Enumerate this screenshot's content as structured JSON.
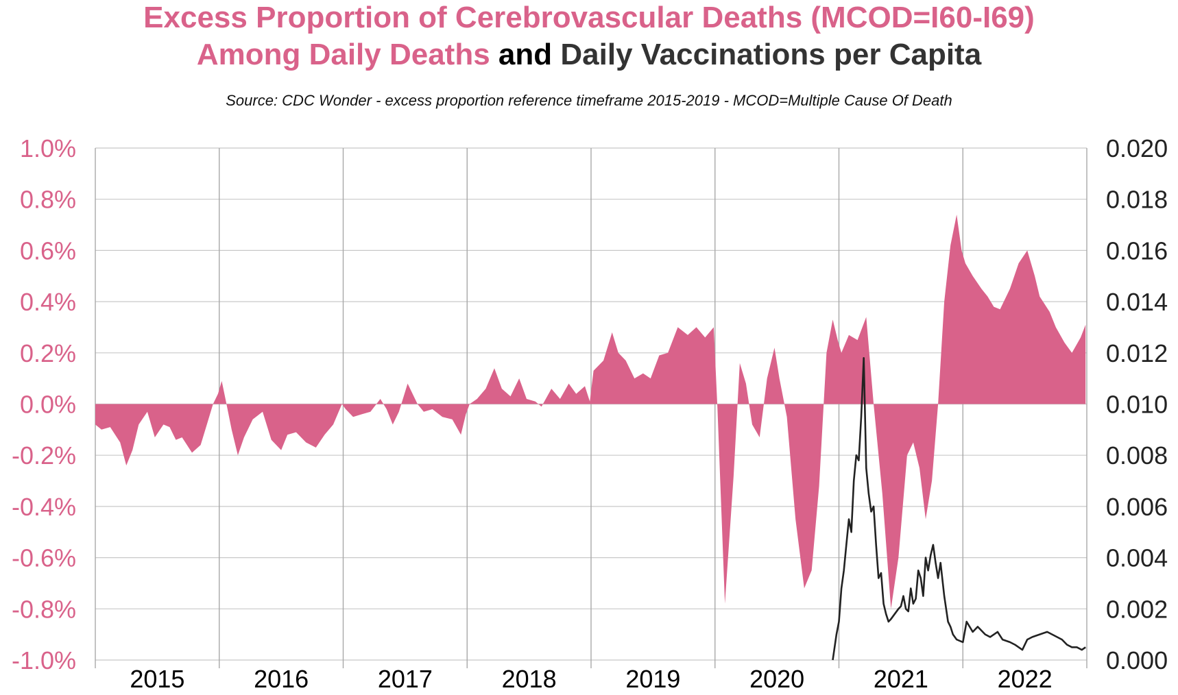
{
  "title": {
    "line1": "Excess Proportion of Cerebrovascular Deaths (MCOD=I60-I69)",
    "line2_a": "Among Daily Deaths",
    "line2_b": " and ",
    "line2_c": "Daily Vaccinations per Capita"
  },
  "subtitle": "Source: CDC Wonder - excess proportion reference timeframe 2015-2019 - MCOD=Multiple Cause Of Death",
  "colors": {
    "excess": "#d9628a",
    "excess_text": "#d9628a",
    "vacc": "#222222",
    "grid": "#c8c8c8",
    "year_sep": "#a8a8a8"
  },
  "chart_data": {
    "type": "area",
    "grid": true,
    "x_categories": [
      "2015",
      "2016",
      "2017",
      "2018",
      "2019",
      "2020",
      "2021",
      "2022"
    ],
    "xlim": [
      2015.0,
      2023.0
    ],
    "left_axis": {
      "ylim": [
        -1.0,
        1.0
      ],
      "ticks": [
        "1.0%",
        "0.8%",
        "0.6%",
        "0.4%",
        "0.2%",
        "0.0%",
        "-0.2%",
        "-0.4%",
        "-0.6%",
        "-0.8%",
        "-1.0%"
      ]
    },
    "right_axis": {
      "ylim": [
        0.0,
        0.02
      ],
      "ticks": [
        "0.020",
        "0.018",
        "0.016",
        "0.014",
        "0.012",
        "0.010",
        "0.008",
        "0.006",
        "0.004",
        "0.002",
        "0.000"
      ]
    },
    "series": [
      {
        "name": "Excess Proportion of Cerebrovascular Deaths (MCOD=I60-I69) Among Daily Deaths",
        "axis": "left",
        "unit": "%",
        "x": [
          2015.0,
          2015.05,
          2015.12,
          2015.2,
          2015.25,
          2015.3,
          2015.35,
          2015.42,
          2015.48,
          2015.55,
          2015.6,
          2015.65,
          2015.7,
          2015.78,
          2015.85,
          2015.9,
          2015.95,
          2015.99,
          2016.02,
          2016.05,
          2016.1,
          2016.15,
          2016.2,
          2016.27,
          2016.35,
          2016.42,
          2016.5,
          2016.55,
          2016.62,
          2016.7,
          2016.78,
          2016.85,
          2016.92,
          2016.99,
          2017.02,
          2017.08,
          2017.15,
          2017.22,
          2017.3,
          2017.35,
          2017.4,
          2017.45,
          2017.52,
          2017.6,
          2017.65,
          2017.72,
          2017.8,
          2017.88,
          2017.95,
          2017.99,
          2018.02,
          2018.08,
          2018.15,
          2018.22,
          2018.28,
          2018.35,
          2018.42,
          2018.48,
          2018.55,
          2018.6,
          2018.68,
          2018.75,
          2018.82,
          2018.88,
          2018.95,
          2018.99,
          2019.02,
          2019.1,
          2019.17,
          2019.22,
          2019.28,
          2019.35,
          2019.42,
          2019.48,
          2019.55,
          2019.62,
          2019.7,
          2019.78,
          2019.85,
          2019.92,
          2019.99,
          2020.02,
          2020.08,
          2020.15,
          2020.2,
          2020.25,
          2020.3,
          2020.36,
          2020.42,
          2020.48,
          2020.52,
          2020.58,
          2020.65,
          2020.72,
          2020.78,
          2020.84,
          2020.9,
          2020.95,
          2020.99,
          2021.02,
          2021.08,
          2021.15,
          2021.22,
          2021.28,
          2021.35,
          2021.42,
          2021.48,
          2021.55,
          2021.6,
          2021.65,
          2021.7,
          2021.75,
          2021.8,
          2021.85,
          2021.9,
          2021.95,
          2021.99,
          2022.02,
          2022.08,
          2022.15,
          2022.2,
          2022.25,
          2022.3,
          2022.38,
          2022.45,
          2022.52,
          2022.58,
          2022.62,
          2022.7,
          2022.75,
          2022.82,
          2022.88,
          2022.95,
          2022.99
        ],
        "values": [
          -0.08,
          -0.1,
          -0.09,
          -0.15,
          -0.24,
          -0.18,
          -0.08,
          -0.03,
          -0.13,
          -0.08,
          -0.09,
          -0.14,
          -0.13,
          -0.19,
          -0.16,
          -0.08,
          0.0,
          0.04,
          0.09,
          0.02,
          -0.1,
          -0.2,
          -0.13,
          -0.06,
          -0.03,
          -0.14,
          -0.18,
          -0.12,
          -0.11,
          -0.15,
          -0.17,
          -0.12,
          -0.08,
          0.0,
          -0.02,
          -0.05,
          -0.04,
          -0.03,
          0.02,
          -0.02,
          -0.08,
          -0.03,
          0.08,
          0.0,
          -0.03,
          -0.02,
          -0.05,
          -0.06,
          -0.12,
          -0.04,
          0.0,
          0.02,
          0.06,
          0.14,
          0.06,
          0.03,
          0.1,
          0.02,
          0.01,
          -0.01,
          0.06,
          0.02,
          0.08,
          0.04,
          0.07,
          0.01,
          0.13,
          0.17,
          0.28,
          0.2,
          0.17,
          0.1,
          0.12,
          0.1,
          0.19,
          0.2,
          0.3,
          0.27,
          0.3,
          0.26,
          0.3,
          -0.02,
          -0.78,
          -0.28,
          0.16,
          0.08,
          -0.08,
          -0.13,
          0.1,
          0.22,
          0.1,
          -0.05,
          -0.45,
          -0.72,
          -0.65,
          -0.32,
          0.2,
          0.33,
          0.25,
          0.2,
          0.27,
          0.25,
          0.34,
          0.0,
          -0.35,
          -0.8,
          -0.6,
          -0.2,
          -0.15,
          -0.25,
          -0.45,
          -0.3,
          0.0,
          0.4,
          0.62,
          0.74,
          0.6,
          0.55,
          0.5,
          0.45,
          0.42,
          0.38,
          0.37,
          0.45,
          0.55,
          0.6,
          0.5,
          0.42,
          0.36,
          0.3,
          0.24,
          0.2,
          0.26,
          0.31
        ]
      },
      {
        "name": "Daily Vaccinations per Capita",
        "axis": "right",
        "x": [
          2020.95,
          2020.98,
          2021.0,
          2021.02,
          2021.04,
          2021.06,
          2021.08,
          2021.1,
          2021.12,
          2021.14,
          2021.16,
          2021.18,
          2021.2,
          2021.22,
          2021.24,
          2021.26,
          2021.28,
          2021.3,
          2021.32,
          2021.34,
          2021.36,
          2021.38,
          2021.4,
          2021.42,
          2021.45,
          2021.48,
          2021.5,
          2021.52,
          2021.54,
          2021.56,
          2021.58,
          2021.6,
          2021.62,
          2021.64,
          2021.66,
          2021.68,
          2021.7,
          2021.72,
          2021.74,
          2021.76,
          2021.78,
          2021.8,
          2021.82,
          2021.85,
          2021.88,
          2021.9,
          2021.92,
          2021.95,
          2022.0,
          2022.03,
          2022.08,
          2022.12,
          2022.18,
          2022.22,
          2022.28,
          2022.32,
          2022.38,
          2022.42,
          2022.48,
          2022.52,
          2022.56,
          2022.62,
          2022.68,
          2022.72,
          2022.76,
          2022.8,
          2022.84,
          2022.88,
          2022.92,
          2022.96,
          2022.99
        ],
        "values": [
          0.0,
          0.001,
          0.0015,
          0.0028,
          0.0035,
          0.0045,
          0.0055,
          0.005,
          0.007,
          0.008,
          0.0078,
          0.0095,
          0.0118,
          0.0075,
          0.0065,
          0.0058,
          0.006,
          0.0045,
          0.0032,
          0.0034,
          0.0022,
          0.0018,
          0.0015,
          0.0016,
          0.0018,
          0.002,
          0.0021,
          0.0025,
          0.002,
          0.0019,
          0.0028,
          0.0022,
          0.0024,
          0.0035,
          0.0032,
          0.0025,
          0.004,
          0.0035,
          0.0041,
          0.0045,
          0.0038,
          0.0032,
          0.0038,
          0.0025,
          0.0015,
          0.0013,
          0.001,
          0.0008,
          0.0007,
          0.0015,
          0.0011,
          0.0013,
          0.001,
          0.0009,
          0.0011,
          0.0008,
          0.0007,
          0.0006,
          0.0004,
          0.0008,
          0.0009,
          0.001,
          0.0011,
          0.001,
          0.0009,
          0.0008,
          0.0006,
          0.0005,
          0.0005,
          0.0004,
          0.0005
        ]
      }
    ]
  }
}
